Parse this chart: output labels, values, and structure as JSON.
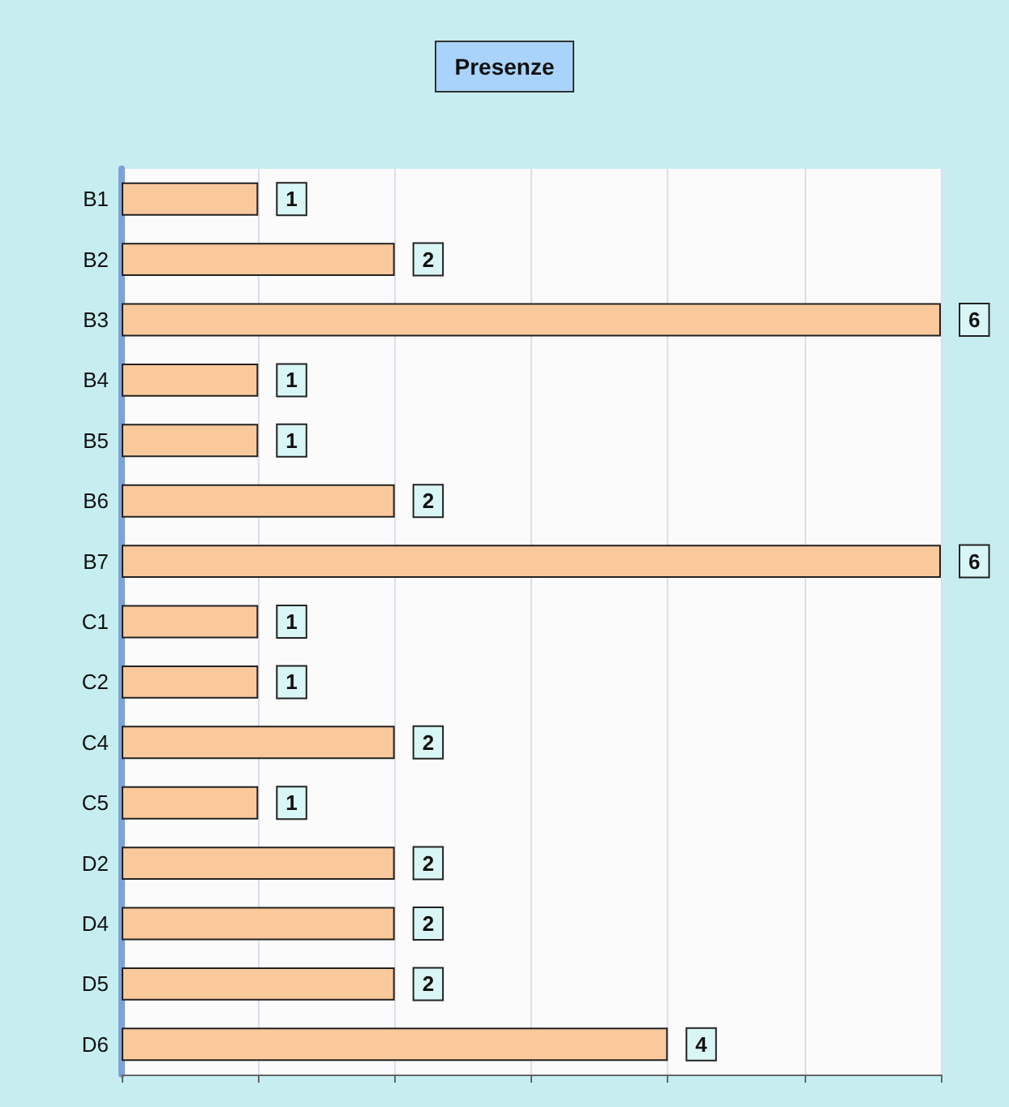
{
  "chart_data": {
    "type": "bar",
    "orientation": "horizontal",
    "title": "Presenze",
    "categories": [
      "B1",
      "B2",
      "B3",
      "B4",
      "B5",
      "B6",
      "B7",
      "C1",
      "C2",
      "C4",
      "C5",
      "D2",
      "D4",
      "D5",
      "D6"
    ],
    "values": [
      1,
      2,
      6,
      1,
      1,
      2,
      6,
      1,
      1,
      2,
      1,
      2,
      2,
      2,
      4
    ],
    "color": "#f9c99c",
    "xlim": [
      0,
      6
    ],
    "xticks": [
      {
        "value": 0,
        "label": null
      },
      {
        "value": 1,
        "label": null
      },
      {
        "value": 2,
        "label": null
      },
      {
        "value": 3,
        "label": null
      },
      {
        "value": 4,
        "label": null
      },
      {
        "value": 5,
        "label": null
      },
      {
        "value": 6,
        "label": null
      }
    ],
    "tick_labels": "y",
    "grid": "x",
    "data_labels": true
  }
}
